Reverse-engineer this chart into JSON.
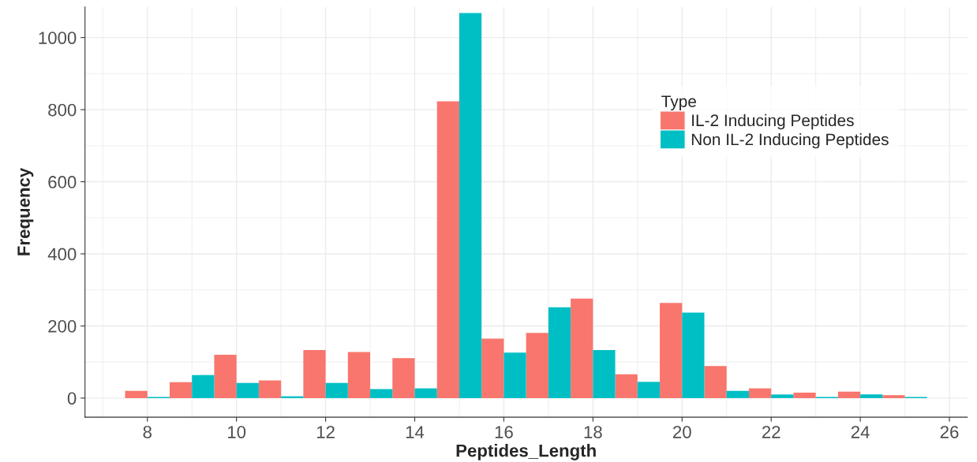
{
  "chart_data": {
    "type": "bar",
    "xlabel": "Peptides_Length",
    "ylabel": "Frequency",
    "legend_title": "Type",
    "x": [
      8,
      9,
      10,
      11,
      12,
      13,
      14,
      15,
      16,
      17,
      18,
      19,
      20,
      21,
      22,
      23,
      24,
      25
    ],
    "series": [
      {
        "name": "IL-2 Inducing Peptides",
        "color": "#f8766d",
        "values": [
          20,
          44,
          120,
          49,
          133,
          128,
          111,
          823,
          165,
          181,
          276,
          66,
          264,
          89,
          27,
          15,
          18,
          8
        ]
      },
      {
        "name": "Non IL-2 Inducing Peptides",
        "color": "#00bfc4",
        "values": [
          3,
          64,
          42,
          5,
          42,
          25,
          27,
          1068,
          126,
          252,
          133,
          45,
          237,
          20,
          10,
          3,
          10,
          3
        ]
      }
    ],
    "xlim": [
      6.6,
      26.4
    ],
    "xticks": [
      8,
      10,
      12,
      14,
      16,
      18,
      20,
      22,
      24,
      26
    ],
    "ylim": [
      -53,
      1085
    ],
    "yticks": [
      0,
      200,
      400,
      600,
      800,
      1000
    ],
    "grid": true,
    "legend": "right"
  }
}
